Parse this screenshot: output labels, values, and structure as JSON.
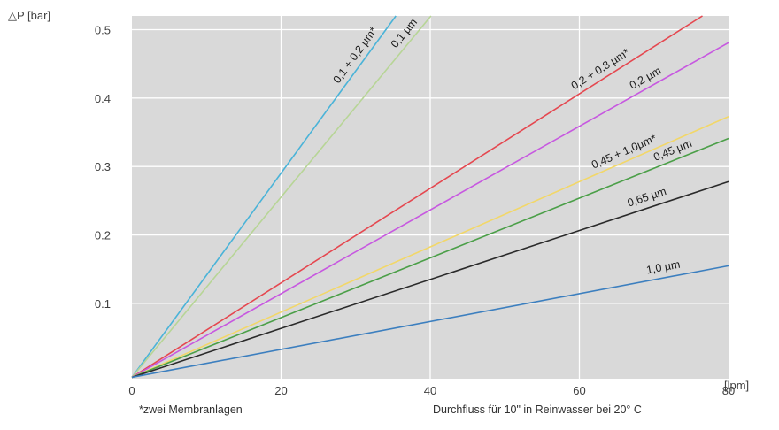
{
  "chart_data": {
    "type": "line",
    "ylabel": "△P [bar]",
    "xlabel": "Durchfluss für 10\" in Reinwasser bei 20° C",
    "x_unit_label": "[lpm]",
    "footnote": "*zwei Membranlagen",
    "xlim": [
      0,
      80
    ],
    "ylim": [
      -0.01,
      0.52
    ],
    "x_ticks": [
      0,
      20,
      40,
      60,
      80
    ],
    "y_ticks": [
      0.1,
      0.2,
      0.3,
      0.4,
      0.5
    ],
    "y_tick_labels": [
      "0.1",
      "0.2",
      "0.3",
      "0.4",
      "0.5"
    ],
    "grid": true,
    "background": "#d9d9d9",
    "series": [
      {
        "name": "0,1 + 0,2 µm*",
        "color": "#4ab3d8",
        "x": [
          0,
          35.4
        ],
        "y": [
          -0.008,
          0.52
        ]
      },
      {
        "name": "0,1 µm",
        "color": "#b7d596",
        "x": [
          0,
          40.1
        ],
        "y": [
          -0.008,
          0.52
        ]
      },
      {
        "name": "0,2 + 0,8 µm*",
        "color": "#e5474f",
        "x": [
          0,
          76.5
        ],
        "y": [
          -0.008,
          0.52
        ]
      },
      {
        "name": "0,2 µm",
        "color": "#c758e0",
        "x": [
          0,
          80
        ],
        "y": [
          -0.008,
          0.481
        ]
      },
      {
        "name": "0,45 + 1,0µm*",
        "color": "#f2d768",
        "x": [
          0,
          80
        ],
        "y": [
          -0.008,
          0.373
        ]
      },
      {
        "name": "0,45 µm",
        "color": "#4b9f48",
        "x": [
          0,
          80
        ],
        "y": [
          -0.008,
          0.341
        ]
      },
      {
        "name": "0,65 µm",
        "color": "#2a2a2a",
        "x": [
          0,
          80
        ],
        "y": [
          -0.008,
          0.278
        ]
      },
      {
        "name": "1,0 µm",
        "color": "#3c7fbf",
        "x": [
          0,
          80
        ],
        "y": [
          -0.008,
          0.155
        ]
      }
    ]
  }
}
